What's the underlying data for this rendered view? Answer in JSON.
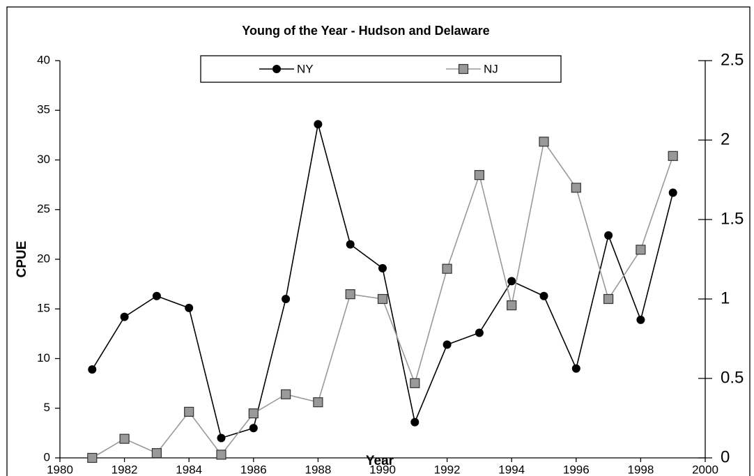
{
  "chart_data": {
    "type": "line",
    "title": "Young of the Year - Hudson and Delaware",
    "x_label": "Year",
    "y_label": "CPUE",
    "x": [
      1981,
      1982,
      1983,
      1984,
      1985,
      1986,
      1987,
      1988,
      1989,
      1990,
      1991,
      1992,
      1993,
      1994,
      1995,
      1996,
      1997,
      1998,
      1999
    ],
    "series": [
      {
        "name": "NY",
        "color": "#000000",
        "marker": "circle",
        "axis": "y",
        "values": [
          8.9,
          14.2,
          16.3,
          15.1,
          2.0,
          3.0,
          16.0,
          33.6,
          21.5,
          19.1,
          3.6,
          11.4,
          12.6,
          17.8,
          16.3,
          9.0,
          22.4,
          13.9,
          26.7
        ]
      },
      {
        "name": "NJ",
        "color": "#999999",
        "marker": "square",
        "axis": "y2",
        "values": [
          0,
          0.12,
          0.03,
          0.29,
          0.02,
          0.28,
          0.4,
          0.35,
          1.03,
          1.0,
          0.47,
          1.19,
          1.78,
          0.96,
          1.99,
          1.7,
          1.0,
          1.31,
          1.9
        ]
      }
    ],
    "xlim": [
      1980,
      2000
    ],
    "xticks": [
      1980,
      1982,
      1984,
      1986,
      1988,
      1990,
      1992,
      1994,
      1996,
      1998,
      2000
    ],
    "ylim": [
      0,
      40
    ],
    "yticks": [
      0,
      5,
      10,
      15,
      20,
      25,
      30,
      35,
      40
    ],
    "y2lim": [
      0,
      2.5
    ],
    "y2ticks": [
      0,
      0.5,
      1,
      1.5,
      2,
      2.5
    ],
    "legend": "top"
  }
}
